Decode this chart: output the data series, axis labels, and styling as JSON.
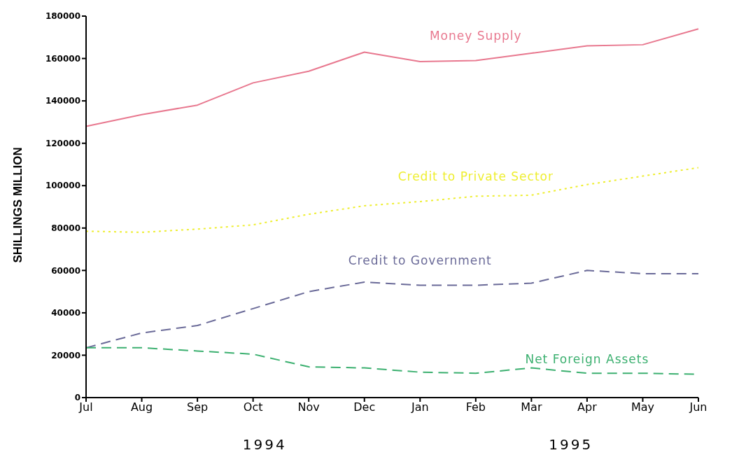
{
  "chart_data": {
    "type": "line",
    "ylabel": "SHILLINGS MILLION",
    "categories": [
      "Jul",
      "Aug",
      "Sep",
      "Oct",
      "Nov",
      "Dec",
      "Jan",
      "Feb",
      "Mar",
      "Apr",
      "May",
      "Jun"
    ],
    "series": [
      {
        "name": "Money Supply",
        "color": "#e8788f",
        "line_style": "solid",
        "values": [
          128000,
          133500,
          138000,
          148500,
          154000,
          163000,
          158500,
          159000,
          162500,
          166000,
          166500,
          174000
        ]
      },
      {
        "name": "Credit to Private Sector",
        "color": "#eeee30",
        "line_style": "dotted",
        "values": [
          78500,
          78000,
          79500,
          81500,
          86500,
          90500,
          92500,
          95000,
          95500,
          100500,
          104500,
          108500
        ]
      },
      {
        "name": "Credit to Government",
        "color": "#6a6a98",
        "line_style": "dashed",
        "values": [
          23500,
          30500,
          34000,
          42000,
          50000,
          54500,
          53000,
          53000,
          54000,
          60000,
          58500,
          58500
        ]
      },
      {
        "name": "Net Foreign Assets",
        "color": "#3cb070",
        "line_style": "dashed",
        "values": [
          23500,
          23500,
          22000,
          20500,
          14500,
          14000,
          12000,
          11500,
          14000,
          11500,
          11500,
          11000
        ]
      }
    ],
    "ylim": [
      0,
      180000
    ],
    "yticks": [
      0,
      20000,
      40000,
      60000,
      80000,
      100000,
      120000,
      140000,
      160000,
      180000
    ],
    "grid": false,
    "legend": false,
    "marker": "none",
    "annotations": [
      "1994",
      "1995"
    ]
  }
}
